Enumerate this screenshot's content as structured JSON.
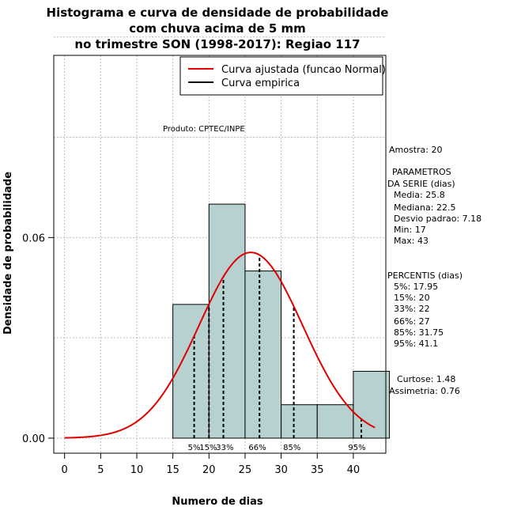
{
  "chart_data": {
    "type": "histogram",
    "title": [
      "Histograma e curva de densidade de probabilidade",
      "com chuva acima de 5 mm",
      "no trimestre SON (1998-2017): Regiao 117"
    ],
    "xlabel": "Numero de dias",
    "ylabel": "Densidade de probabilidade",
    "xlim": [
      -1.5,
      44.5
    ],
    "ylim": [
      -0.0045,
      0.1145
    ],
    "x_ticks": [
      0,
      5,
      10,
      15,
      20,
      25,
      30,
      35,
      40
    ],
    "y_ticks": [
      0.0,
      0.06
    ],
    "y_tick_labels": [
      "0.00",
      "0.06"
    ],
    "grid": true,
    "grid_x": [
      0,
      5,
      10,
      15,
      20,
      25,
      30,
      35,
      40
    ],
    "grid_y": [
      0.0,
      0.03,
      0.06,
      0.09,
      0.12
    ],
    "bins": [
      {
        "start": 15,
        "end": 20,
        "density": 0.04
      },
      {
        "start": 20,
        "end": 25,
        "density": 0.07
      },
      {
        "start": 25,
        "end": 30,
        "density": 0.05
      },
      {
        "start": 30,
        "end": 35,
        "density": 0.01
      },
      {
        "start": 35,
        "end": 40,
        "density": 0.01
      },
      {
        "start": 40,
        "end": 45,
        "density": 0.02
      }
    ],
    "bar_color": "#b7d1d1",
    "fitted_curve": {
      "name": "Curva ajustada (funcao Normal)",
      "distribution": "normal",
      "mean": 25.8,
      "sd": 7.18,
      "x_range": [
        0,
        43
      ],
      "color": "#e00000"
    },
    "empirical_curve": {
      "name": "Curva empirica",
      "color": "#000000"
    },
    "percentile_lines": [
      {
        "label": "5%",
        "x": 17.95
      },
      {
        "label": "15%",
        "x": 20
      },
      {
        "label": "33%",
        "x": 22
      },
      {
        "label": "66%",
        "x": 27
      },
      {
        "label": "85%",
        "x": 31.75
      },
      {
        "label": "95%",
        "x": 41.1
      }
    ],
    "product_label": "Produto: CPTEC/INPE",
    "stats": {
      "amostra": "Amostra: 20",
      "param_header1": "PARAMETROS",
      "param_header2": "DA SERIE (dias)",
      "media": "Media: 25.8",
      "mediana": "Mediana: 22.5",
      "desvio": "Desvio padrao: 7.18",
      "min": "Min: 17",
      "max": "Max: 43",
      "percentis_header": "PERCENTIS (dias)",
      "p5": "5%: 17.95",
      "p15": "15%: 20",
      "p33": "33%: 22",
      "p66": "66%: 27",
      "p85": "85%: 31.75",
      "p95": "95%: 41.1",
      "curtose": "Curtose: 1.48",
      "assimetria": "Assimetria: 0.76"
    }
  }
}
